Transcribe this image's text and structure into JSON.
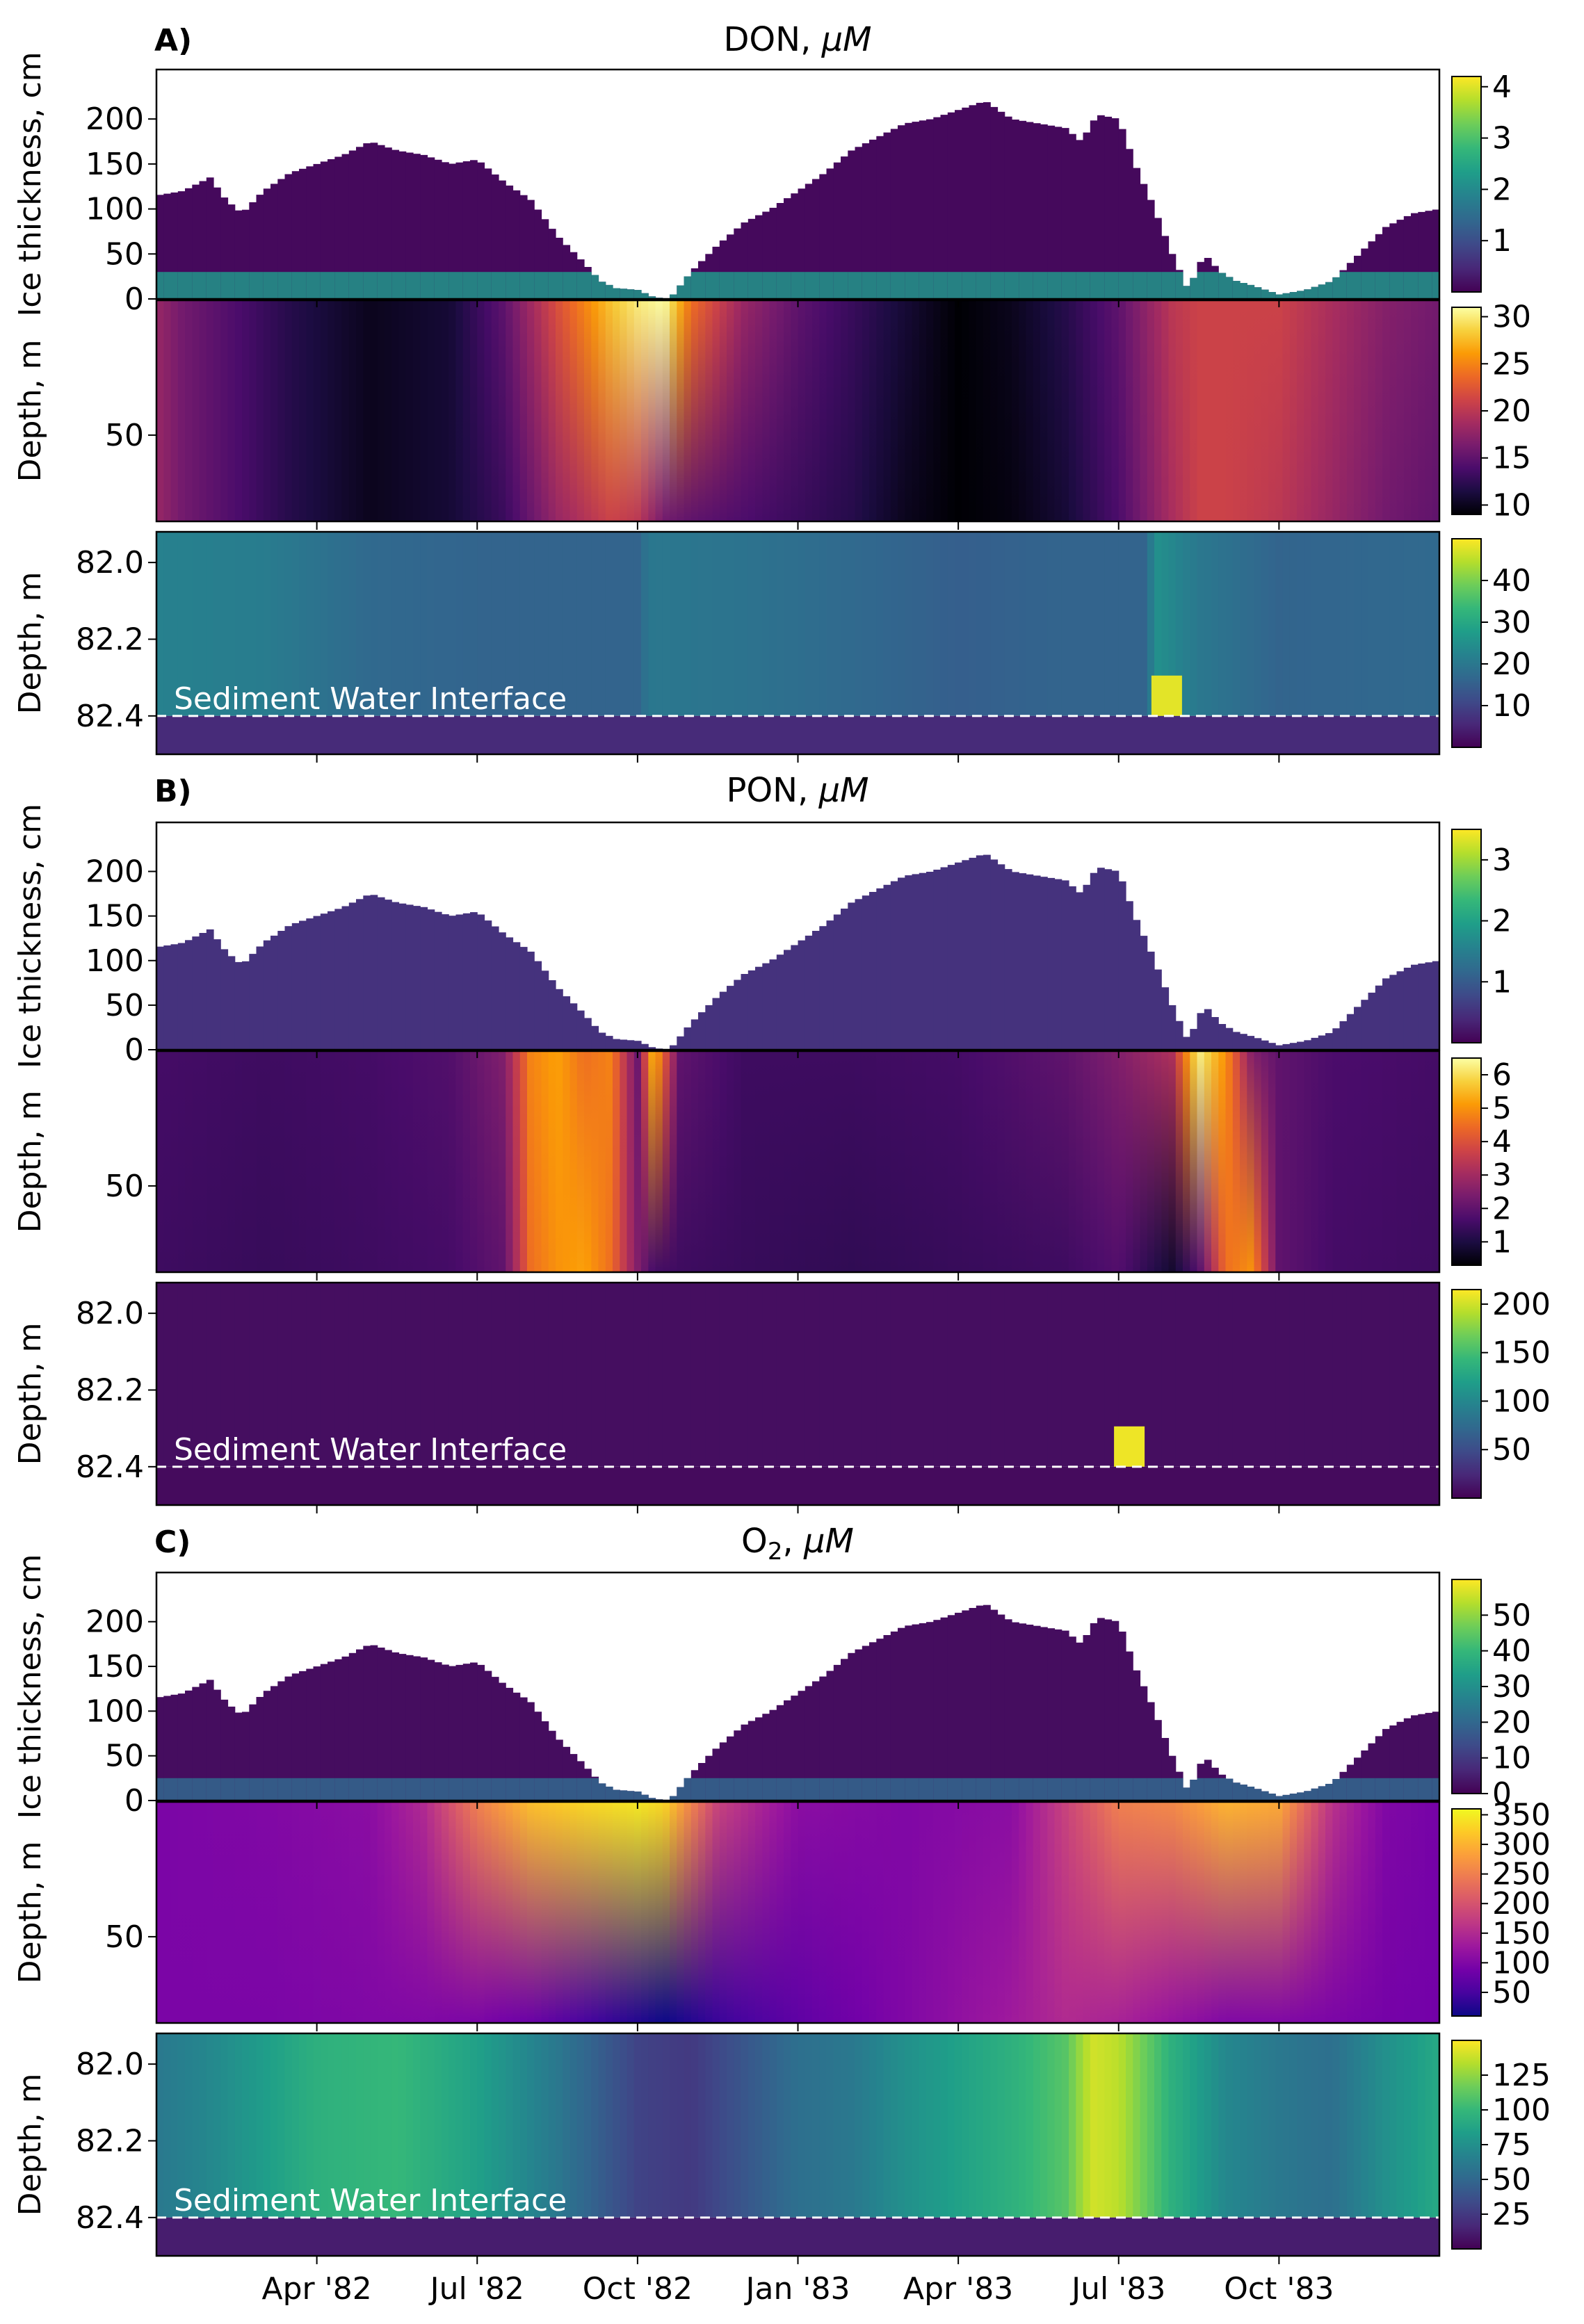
{
  "colors": {
    "viridis": [
      "#440154",
      "#482878",
      "#3e4a89",
      "#31688e",
      "#26828e",
      "#1f9e89",
      "#35b779",
      "#6dcd59",
      "#b4de2c",
      "#fde725"
    ],
    "inferno": [
      "#000004",
      "#1b0c41",
      "#4a0c6b",
      "#781c6d",
      "#a52c60",
      "#cf4446",
      "#ed6925",
      "#fb9b06",
      "#f7d13d",
      "#fcffa4"
    ],
    "plasma": [
      "#0d0887",
      "#47039f",
      "#7301a8",
      "#9c179e",
      "#bd3786",
      "#d8576b",
      "#ed7953",
      "#fb9f3a",
      "#fdca26",
      "#f0f921"
    ],
    "interface_line": "#ffffff"
  },
  "xaxis": {
    "start_month": 0,
    "end_month": 24,
    "ticks": [
      {
        "label": "Apr '82",
        "month": 3
      },
      {
        "label": "Jul '82",
        "month": 6
      },
      {
        "label": "Oct '82",
        "month": 9
      },
      {
        "label": "Jan '83",
        "month": 12
      },
      {
        "label": "Apr '83",
        "month": 15
      },
      {
        "label": "Jul '83",
        "month": 18
      },
      {
        "label": "Oct '83",
        "month": 21
      }
    ]
  },
  "ice_thickness_cm": {
    "months": [
      0,
      0.5,
      1,
      1.3,
      1.6,
      2,
      2.5,
      3,
      3.5,
      4,
      4.5,
      5,
      5.5,
      6,
      6.5,
      7,
      7.5,
      8,
      8.3,
      8.6,
      9,
      9.3,
      9.6,
      10,
      10.5,
      11,
      11.5,
      12,
      12.5,
      13,
      13.5,
      14,
      14.5,
      15,
      15.5,
      16,
      16.5,
      17,
      17.3,
      17.6,
      18,
      18.3,
      18.6,
      19,
      19.3,
      19.6,
      19.9,
      20.2,
      20.5,
      21,
      21.5,
      22,
      22.5,
      23,
      23.5,
      24
    ],
    "values": [
      115,
      120,
      135,
      110,
      95,
      120,
      140,
      150,
      160,
      175,
      165,
      160,
      150,
      155,
      130,
      110,
      70,
      40,
      20,
      12,
      10,
      2,
      0,
      30,
      60,
      85,
      100,
      120,
      140,
      165,
      180,
      195,
      200,
      210,
      220,
      200,
      195,
      190,
      175,
      205,
      200,
      150,
      110,
      50,
      10,
      50,
      30,
      20,
      15,
      5,
      10,
      20,
      50,
      80,
      95,
      100
    ]
  },
  "panels": [
    {
      "letter": "A)",
      "title": "DON, μM",
      "title_main": "DON, ",
      "title_sub": "",
      "title_unit": "μM",
      "ice": {
        "ylabel": "Ice thickness, cm",
        "yticks": [
          "200",
          "150",
          "100",
          "50",
          "0"
        ],
        "ytick_values": [
          200,
          150,
          100,
          50,
          0
        ],
        "ylim": [
          0,
          255
        ],
        "colormap": "viridis",
        "vmin": 0,
        "vmax": 4.2,
        "colorbar_ticks": [
          "4",
          "3",
          "2",
          "1"
        ],
        "colorbar_values": [
          4,
          3,
          2,
          1
        ],
        "bulk": 0.1,
        "bottom_layer": {
          "thickness_cm": 30,
          "value": 2.2
        }
      },
      "water": {
        "ylabel": "Depth, m",
        "yticks": [
          "50"
        ],
        "ytick_values": [
          50
        ],
        "ylim": [
          0,
          82
        ],
        "colormap": "inferno",
        "vmin": 9,
        "vmax": 31,
        "colorbar_ticks": [
          "30",
          "25",
          "20",
          "15",
          "10"
        ],
        "colorbar_values": [
          30,
          25,
          20,
          15,
          10
        ],
        "profile_months": [
          0,
          0.5,
          1.5,
          2.5,
          4,
          5.5,
          6.5,
          7.5,
          8.5,
          9,
          9.5,
          10,
          11,
          12,
          13,
          14,
          15,
          16,
          17,
          18,
          19,
          19.5,
          20,
          21,
          22,
          23,
          24
        ],
        "surface_values": [
          18,
          16,
          14,
          12,
          10,
          11,
          15,
          22,
          28,
          30,
          31,
          24,
          18,
          15,
          13,
          11,
          9,
          10,
          12,
          15,
          20,
          21,
          21,
          21,
          19,
          17,
          16
        ],
        "bottom_values": [
          18,
          16,
          14,
          12,
          10,
          11,
          13,
          18,
          21,
          20,
          16,
          15,
          14,
          13,
          12,
          10,
          9,
          9.5,
          11,
          14,
          19,
          21,
          21,
          20,
          18,
          16,
          15
        ]
      },
      "sediment": {
        "ylabel": "Depth, m",
        "yticks": [
          "82.0",
          "82.2",
          "82.4"
        ],
        "ytick_values": [
          82.0,
          82.2,
          82.4
        ],
        "ylim": [
          81.92,
          82.5
        ],
        "interface_depth": 82.4,
        "interface_label": "Sediment Water Interface",
        "colormap": "viridis",
        "vmin": 0,
        "vmax": 50,
        "colorbar_ticks": [
          "40",
          "30",
          "20",
          "10"
        ],
        "colorbar_values": [
          40,
          30,
          20,
          10
        ],
        "column_months": [
          0,
          2,
          4,
          6,
          8,
          9,
          9.2,
          11,
          13,
          15,
          17,
          18.5,
          18.7,
          19.5,
          21,
          24
        ],
        "column_values": [
          22,
          21,
          17,
          16,
          16,
          16,
          20,
          19,
          17,
          15,
          16,
          16,
          25,
          20,
          16,
          17
        ],
        "below_value": 6,
        "hotspot": {
          "month": 18.9,
          "value": 48
        }
      }
    },
    {
      "letter": "B)",
      "title": "PON, μM",
      "title_main": "PON, ",
      "title_sub": "",
      "title_unit": "μM",
      "ice": {
        "ylabel": "Ice thickness, cm",
        "yticks": [
          "200",
          "150",
          "100",
          "50",
          "0"
        ],
        "ytick_values": [
          200,
          150,
          100,
          50,
          0
        ],
        "ylim": [
          0,
          255
        ],
        "colormap": "viridis",
        "vmin": 0,
        "vmax": 3.5,
        "colorbar_ticks": [
          "3",
          "2",
          "1"
        ],
        "colorbar_values": [
          3,
          2,
          1
        ],
        "bulk": 0.5,
        "bottom_layer": {
          "thickness_cm": 0,
          "value": 0.2
        }
      },
      "water": {
        "ylabel": "Depth, m",
        "yticks": [
          "50"
        ],
        "ytick_values": [
          50
        ],
        "ylim": [
          0,
          82
        ],
        "colormap": "inferno",
        "vmin": 0.3,
        "vmax": 6.5,
        "colorbar_ticks": [
          "6",
          "5",
          "4",
          "3",
          "2",
          "1"
        ],
        "colorbar_values": [
          6,
          5,
          4,
          3,
          2,
          1
        ],
        "profile_months": [
          0,
          2,
          4,
          5.5,
          6.5,
          7,
          7.5,
          8,
          8.5,
          9,
          9.3,
          9.8,
          11,
          13,
          15,
          17,
          18,
          19,
          19.5,
          20,
          20.5,
          21,
          22,
          24
        ],
        "surface_values": [
          1.6,
          1.5,
          1.6,
          1.8,
          2.5,
          4.8,
          5.2,
          4.5,
          4.8,
          2.2,
          5.6,
          2.0,
          1.5,
          1.5,
          1.6,
          2.0,
          2.5,
          3.2,
          6.3,
          5.0,
          2.5,
          2.0,
          1.7,
          1.6
        ],
        "bottom_values": [
          1.5,
          1.4,
          1.5,
          1.6,
          2.0,
          4.5,
          5.0,
          5.2,
          4.5,
          2.5,
          1.6,
          1.5,
          1.4,
          1.3,
          1.4,
          1.5,
          1.8,
          0.8,
          1.8,
          4.5,
          5.0,
          2.0,
          1.6,
          1.5
        ]
      },
      "sediment": {
        "ylabel": "Depth, m",
        "yticks": [
          "82.0",
          "82.2",
          "82.4"
        ],
        "ytick_values": [
          82.0,
          82.2,
          82.4
        ],
        "ylim": [
          81.92,
          82.5
        ],
        "interface_depth": 82.4,
        "interface_label": "Sediment Water Interface",
        "colormap": "viridis",
        "vmin": 0,
        "vmax": 215,
        "colorbar_ticks": [
          "200",
          "150",
          "100",
          "50"
        ],
        "colorbar_values": [
          200,
          150,
          100,
          50
        ],
        "column_months": [
          0,
          12,
          24
        ],
        "column_values": [
          8,
          8,
          8
        ],
        "below_value": 6,
        "hotspot": {
          "month": 18.2,
          "value": 210
        }
      }
    },
    {
      "letter": "C)",
      "title": "O2, μM",
      "title_main": "O",
      "title_sub": "2",
      "title_unit": "μM",
      "ice": {
        "ylabel": "Ice thickness, cm",
        "yticks": [
          "200",
          "150",
          "100",
          "50",
          "0"
        ],
        "ytick_values": [
          200,
          150,
          100,
          50,
          0
        ],
        "ylim": [
          0,
          255
        ],
        "colormap": "viridis",
        "vmin": 0,
        "vmax": 60,
        "colorbar_ticks": [
          "50",
          "40",
          "30",
          "20",
          "10",
          "0"
        ],
        "colorbar_values": [
          50,
          40,
          30,
          20,
          10,
          0
        ],
        "bulk": 2,
        "bottom_layer": {
          "thickness_cm": 25,
          "value": 20
        }
      },
      "water": {
        "ylabel": "Depth, m",
        "yticks": [
          "50"
        ],
        "ytick_values": [
          50
        ],
        "ylim": [
          0,
          82
        ],
        "colormap": "plasma",
        "vmin": 10,
        "vmax": 360,
        "colorbar_ticks": [
          "350",
          "300",
          "250",
          "200",
          "150",
          "100",
          "50"
        ],
        "colorbar_values": [
          350,
          300,
          250,
          200,
          150,
          100,
          50
        ],
        "profile_months": [
          0,
          2,
          4,
          5,
          6,
          7,
          8,
          9,
          9.5,
          10.5,
          12,
          14,
          16,
          17,
          18,
          19,
          20,
          21,
          22,
          23,
          24
        ],
        "surface_values": [
          95,
          100,
          110,
          150,
          250,
          310,
          330,
          345,
          330,
          180,
          110,
          100,
          110,
          180,
          250,
          260,
          300,
          290,
          160,
          100,
          90
        ],
        "bottom_values": [
          95,
          95,
          100,
          100,
          95,
          80,
          50,
          25,
          10,
          40,
          70,
          100,
          130,
          150,
          140,
          120,
          100,
          100,
          95,
          90,
          88
        ]
      },
      "sediment": {
        "ylabel": "Depth, m",
        "yticks": [
          "82.0",
          "82.2",
          "82.4"
        ],
        "ytick_values": [
          82.0,
          82.2,
          82.4
        ],
        "ylim": [
          81.92,
          82.5
        ],
        "interface_depth": 82.4,
        "interface_label": "Sediment Water Interface",
        "colormap": "viridis",
        "vmin": 0,
        "vmax": 150,
        "colorbar_ticks": [
          "125",
          "100",
          "75",
          "50",
          "25"
        ],
        "colorbar_values": [
          125,
          100,
          75,
          50,
          25
        ],
        "column_months": [
          0,
          1,
          3,
          4.5,
          6,
          7.5,
          9,
          10,
          11,
          12,
          13,
          14,
          15,
          16,
          17,
          17.5,
          18,
          19,
          20,
          21,
          22,
          23,
          24
        ],
        "column_values": [
          60,
          70,
          95,
          100,
          85,
          60,
          30,
          25,
          40,
          55,
          60,
          75,
          85,
          95,
          110,
          140,
          135,
          95,
          70,
          60,
          55,
          75,
          90
        ],
        "below_value": 12,
        "hotspot": {
          "month": 0,
          "value": 0
        }
      }
    }
  ],
  "chart_data": [
    {
      "type": "heatmap",
      "title": "DON, μM",
      "subplots": [
        "Ice thickness, cm",
        "Depth, m (water column)",
        "Depth, m (sediment)"
      ],
      "x_ticks": [
        "Apr '82",
        "Jul '82",
        "Oct '82",
        "Jan '83",
        "Apr '83",
        "Jul '83",
        "Oct '83"
      ],
      "colorbar_ranges": [
        [
          0,
          4.2
        ],
        [
          9,
          31
        ],
        [
          0,
          50
        ]
      ],
      "annotation": "Sediment Water Interface at 82.4 m"
    },
    {
      "type": "heatmap",
      "title": "PON, μM",
      "subplots": [
        "Ice thickness, cm",
        "Depth, m (water column)",
        "Depth, m (sediment)"
      ],
      "x_ticks": [
        "Apr '82",
        "Jul '82",
        "Oct '82",
        "Jan '83",
        "Apr '83",
        "Jul '83",
        "Oct '83"
      ],
      "colorbar_ranges": [
        [
          0,
          3.5
        ],
        [
          0.3,
          6.5
        ],
        [
          0,
          215
        ]
      ],
      "annotation": "Sediment Water Interface at 82.4 m"
    },
    {
      "type": "heatmap",
      "title": "O2, μM",
      "subplots": [
        "Ice thickness, cm",
        "Depth, m (water column)",
        "Depth, m (sediment)"
      ],
      "x_ticks": [
        "Apr '82",
        "Jul '82",
        "Oct '82",
        "Jan '83",
        "Apr '83",
        "Jul '83",
        "Oct '83"
      ],
      "colorbar_ranges": [
        [
          0,
          60
        ],
        [
          10,
          360
        ],
        [
          0,
          150
        ]
      ],
      "annotation": "Sediment Water Interface at 82.4 m"
    }
  ]
}
